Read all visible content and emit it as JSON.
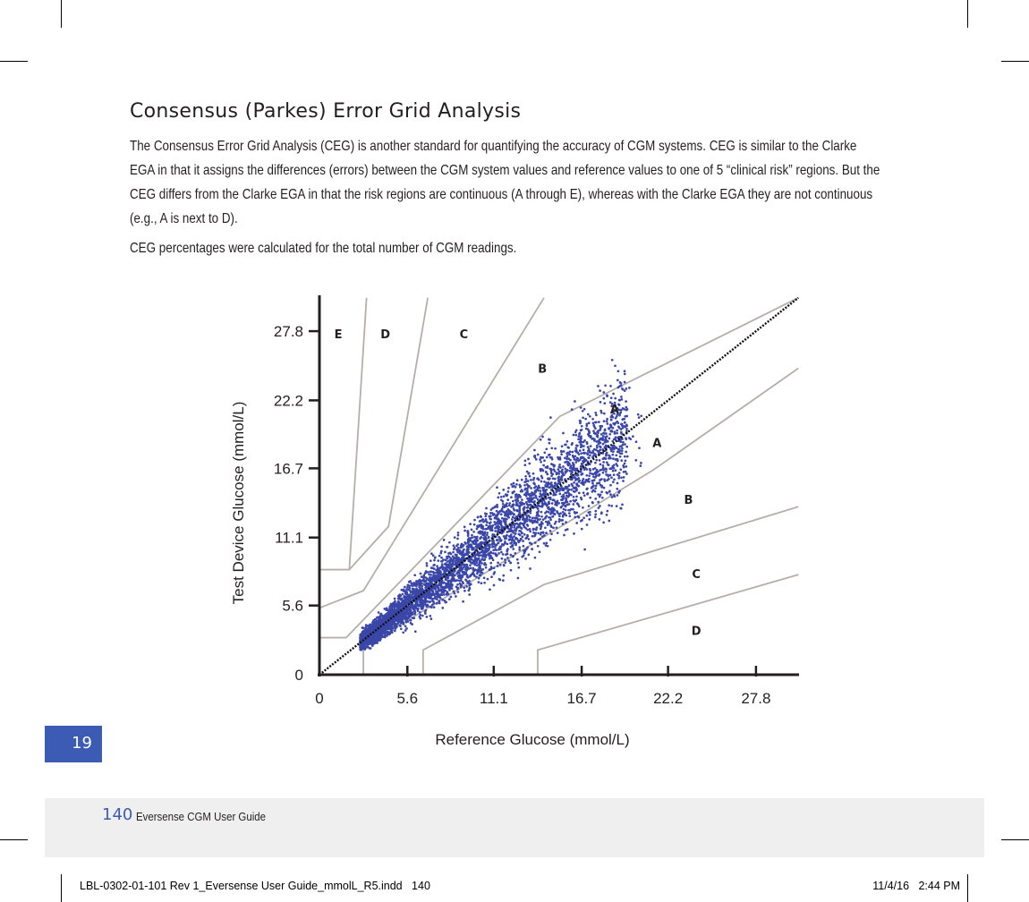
{
  "heading": "Consensus (Parkes) Error Grid Analysis",
  "paragraphs": [
    "The Consensus Error Grid Analysis (CEG) is another standard for quantifying the accuracy of CGM systems. CEG is similar to the Clarke EGA in that it assigns the differences (errors) between the CGM system values and reference values to one of 5 “clinical risk” regions. But the CEG differs from the Clarke EGA in that the risk regions are continuous (A through E), whereas with the Clarke EGA they are not continuous (e.g., A is next to D).",
    "CEG percentages were calculated for the total number of CGM readings."
  ],
  "chart_data": {
    "type": "scatter",
    "title": "",
    "xlabel": "Reference Glucose (mmol/L)",
    "ylabel": "Test Device Glucose (mmol/L)",
    "x_ticks": [
      "0",
      "5.6",
      "11.1",
      "16.7",
      "22.2",
      "27.8"
    ],
    "y_ticks": [
      "0",
      "5.6",
      "11.1",
      "16.7",
      "22.2",
      "27.8"
    ],
    "xlim": [
      0,
      30.5
    ],
    "ylim": [
      0,
      30.5
    ],
    "grid": false,
    "legend": null,
    "identity_line": {
      "style": "dotted",
      "color": "#000000",
      "from": [
        0,
        0
      ],
      "to": [
        30.5,
        30.5
      ]
    },
    "series": [
      {
        "name": "CGM readings",
        "color": "#3a47a8",
        "marker": "dot",
        "description": "Dense cloud of several thousand points along the identity line, roughly from 2.5 to 21 mmol/L reference; the vast majority within zone A, a minority in zone B.",
        "x_range": [
          2.5,
          21
        ],
        "y_range": [
          2.0,
          22
        ]
      }
    ],
    "region_labels": [
      {
        "label": "E",
        "x": 1.2,
        "y": 27.6
      },
      {
        "label": "D",
        "x": 4.2,
        "y": 27.6
      },
      {
        "label": "C",
        "x": 9.2,
        "y": 27.6
      },
      {
        "label": "B",
        "x": 14.2,
        "y": 24.8
      },
      {
        "label": "A",
        "x": 18.8,
        "y": 21.5
      },
      {
        "label": "A",
        "x": 21.5,
        "y": 18.8
      },
      {
        "label": "B",
        "x": 23.5,
        "y": 14.2
      },
      {
        "label": "C",
        "x": 24.0,
        "y": 8.2
      },
      {
        "label": "D",
        "x": 24.0,
        "y": 3.6
      }
    ],
    "zone_boundaries": [
      {
        "name": "A/B upper",
        "points": [
          [
            0,
            3.0
          ],
          [
            1.7,
            3.0
          ],
          [
            15.3,
            20.9
          ],
          [
            30.5,
            30.5
          ]
        ]
      },
      {
        "name": "A/B lower",
        "points": [
          [
            2.8,
            0
          ],
          [
            2.8,
            2.2
          ],
          [
            21.3,
            16.6
          ],
          [
            30.5,
            24.8
          ]
        ]
      },
      {
        "name": "B/C upper",
        "points": [
          [
            0,
            5.4
          ],
          [
            2.8,
            6.8
          ],
          [
            14.3,
            30.5
          ]
        ]
      },
      {
        "name": "B/C lower",
        "points": [
          [
            6.6,
            0
          ],
          [
            6.6,
            2.0
          ],
          [
            14.3,
            7.3
          ],
          [
            30.5,
            13.6
          ]
        ]
      },
      {
        "name": "C/D upper",
        "points": [
          [
            0,
            8.5
          ],
          [
            1.9,
            8.5
          ],
          [
            4.4,
            12.0
          ],
          [
            6.9,
            30.5
          ]
        ]
      },
      {
        "name": "C/D lower",
        "points": [
          [
            13.9,
            0
          ],
          [
            13.9,
            2.0
          ],
          [
            30.5,
            8.1
          ]
        ]
      },
      {
        "name": "D/E upper",
        "points": [
          [
            0,
            8.5
          ],
          [
            1.9,
            8.5
          ],
          [
            3.0,
            30.5
          ]
        ]
      }
    ]
  },
  "chapter_tab": "19",
  "footer": {
    "page_number": "140",
    "guide_title": "Eversense CGM User Guide"
  },
  "slug": {
    "file": "LBL-0302-01-101 Rev 1_Eversense User Guide_mmolL_R5.indd   140",
    "datetime": "11/4/16   2:44 PM"
  }
}
